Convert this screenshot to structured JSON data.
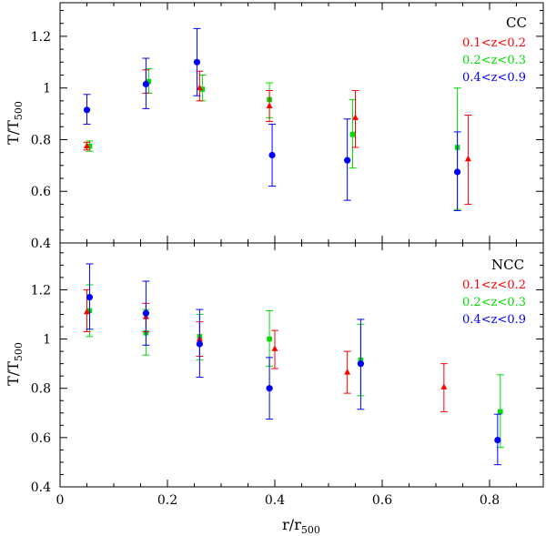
{
  "chart_data": {
    "type": "scatter",
    "xlabel": "r/r500",
    "xlabel_main": "r/r",
    "xlabel_sub": "500",
    "ylabel": "T/T500",
    "ylabel_main": "T/T",
    "ylabel_sub": "500",
    "xlim": [
      0,
      0.9
    ],
    "x_ticks": [
      "0",
      "0.2",
      "0.4",
      "0.6",
      "0.8"
    ],
    "series_colors": [
      "#ff0000",
      "#00dd00",
      "#0000ff"
    ],
    "marker_shapes": [
      "triangle",
      "square",
      "circle"
    ],
    "panels": [
      {
        "label": "CC",
        "ylim": [
          0.4,
          1.33
        ],
        "y_ticks": [
          "0.4",
          "0.6",
          "0.8",
          "1",
          "1.2"
        ],
        "series": [
          {
            "name": "0.1<z<0.2",
            "points": [
              {
                "x": 0.05,
                "y": 0.775,
                "lo": 0.76,
                "hi": 0.79
              },
              {
                "x": 0.16,
                "y": 1.02,
                "lo": 0.98,
                "hi": 1.07
              },
              {
                "x": 0.26,
                "y": 1.0,
                "lo": 0.95,
                "hi": 1.065
              },
              {
                "x": 0.39,
                "y": 0.93,
                "lo": 0.87,
                "hi": 0.99
              },
              {
                "x": 0.55,
                "y": 0.885,
                "lo": 0.77,
                "hi": 0.99
              },
              {
                "x": 0.76,
                "y": 0.725,
                "lo": 0.55,
                "hi": 0.895
              }
            ]
          },
          {
            "name": "0.2<z<0.3",
            "points": [
              {
                "x": 0.055,
                "y": 0.775,
                "lo": 0.755,
                "hi": 0.795
              },
              {
                "x": 0.165,
                "y": 1.025,
                "lo": 0.98,
                "hi": 1.075
              },
              {
                "x": 0.265,
                "y": 0.995,
                "lo": 0.95,
                "hi": 1.05
              },
              {
                "x": 0.39,
                "y": 0.955,
                "lo": 0.885,
                "hi": 1.02
              },
              {
                "x": 0.545,
                "y": 0.82,
                "lo": 0.69,
                "hi": 0.955
              },
              {
                "x": 0.74,
                "y": 0.77,
                "lo": 0.53,
                "hi": 1.0
              }
            ]
          },
          {
            "name": "0.4<z<0.9",
            "points": [
              {
                "x": 0.05,
                "y": 0.915,
                "lo": 0.86,
                "hi": 0.975
              },
              {
                "x": 0.16,
                "y": 1.015,
                "lo": 0.92,
                "hi": 1.115
              },
              {
                "x": 0.255,
                "y": 1.1,
                "lo": 0.97,
                "hi": 1.23
              },
              {
                "x": 0.395,
                "y": 0.74,
                "lo": 0.62,
                "hi": 0.86
              },
              {
                "x": 0.535,
                "y": 0.72,
                "lo": 0.565,
                "hi": 0.88
              },
              {
                "x": 0.74,
                "y": 0.675,
                "lo": 0.525,
                "hi": 0.83
              }
            ]
          }
        ]
      },
      {
        "label": "NCC",
        "ylim": [
          0.4,
          1.39
        ],
        "y_ticks": [
          "0.4",
          "0.6",
          "0.8",
          "1",
          "1.2"
        ],
        "series": [
          {
            "name": "0.1<z<0.2",
            "points": [
              {
                "x": 0.05,
                "y": 1.11,
                "lo": 1.03,
                "hi": 1.2
              },
              {
                "x": 0.16,
                "y": 1.09,
                "lo": 1.03,
                "hi": 1.145
              },
              {
                "x": 0.26,
                "y": 1.0,
                "lo": 0.93,
                "hi": 1.07
              },
              {
                "x": 0.4,
                "y": 0.96,
                "lo": 0.88,
                "hi": 1.035
              },
              {
                "x": 0.535,
                "y": 0.865,
                "lo": 0.78,
                "hi": 0.95
              },
              {
                "x": 0.715,
                "y": 0.805,
                "lo": 0.705,
                "hi": 0.9
              }
            ]
          },
          {
            "name": "0.2<z<0.3",
            "points": [
              {
                "x": 0.055,
                "y": 1.115,
                "lo": 1.01,
                "hi": 1.22
              },
              {
                "x": 0.16,
                "y": 1.025,
                "lo": 0.935,
                "hi": 1.12
              },
              {
                "x": 0.26,
                "y": 1.01,
                "lo": 0.915,
                "hi": 1.1
              },
              {
                "x": 0.39,
                "y": 1.0,
                "lo": 0.89,
                "hi": 1.115
              },
              {
                "x": 0.56,
                "y": 0.915,
                "lo": 0.77,
                "hi": 1.06
              },
              {
                "x": 0.82,
                "y": 0.705,
                "lo": 0.56,
                "hi": 0.855
              }
            ]
          },
          {
            "name": "0.4<z<0.9",
            "points": [
              {
                "x": 0.055,
                "y": 1.17,
                "lo": 1.04,
                "hi": 1.305
              },
              {
                "x": 0.16,
                "y": 1.105,
                "lo": 0.975,
                "hi": 1.235
              },
              {
                "x": 0.26,
                "y": 0.98,
                "lo": 0.845,
                "hi": 1.12
              },
              {
                "x": 0.39,
                "y": 0.8,
                "lo": 0.675,
                "hi": 0.925
              },
              {
                "x": 0.56,
                "y": 0.9,
                "lo": 0.715,
                "hi": 1.08
              },
              {
                "x": 0.815,
                "y": 0.59,
                "lo": 0.49,
                "hi": 0.695
              }
            ]
          }
        ]
      }
    ]
  }
}
